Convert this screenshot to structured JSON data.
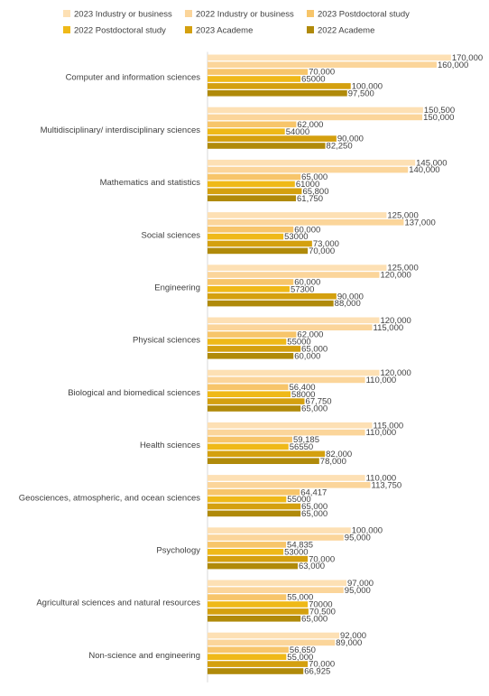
{
  "chart_data": {
    "type": "bar",
    "orientation": "horizontal",
    "title": "",
    "xlabel": "",
    "ylabel": "",
    "grid": false,
    "legend_position": "top",
    "xlim": [
      0,
      172000
    ],
    "categories": [
      "Computer and information sciences",
      "Multidisciplinary/ interdisciplinary sciences",
      "Mathematics and statistics",
      "Social sciences",
      "Engineering",
      "Physical sciences",
      "Biological and biomedical sciences",
      "Health sciences",
      "Geosciences, atmospheric, and ocean sciences",
      "Psychology",
      "Agricultural sciences and natural resources",
      "Non-science and engineering"
    ],
    "series": [
      {
        "name": "2023 Industry or business",
        "color": "#fde0b4",
        "values": [
          170000,
          150500,
          145000,
          125000,
          125000,
          120000,
          120000,
          115000,
          110000,
          100000,
          97000,
          92000
        ],
        "labels": [
          "170,000",
          "150,500",
          "145,000",
          "125,000",
          "125,000",
          "120,000",
          "120,000",
          "115,000",
          "110,000",
          "100,000",
          "97,000",
          "92,000"
        ]
      },
      {
        "name": "2022 Industry or business",
        "color": "#fbd59a",
        "values": [
          160000,
          150000,
          140000,
          137000,
          120000,
          115000,
          110000,
          110000,
          113750,
          95000,
          95000,
          89000
        ],
        "labels": [
          "160,000",
          "150,000",
          "140,000",
          "137,000",
          "120,000",
          "115,000",
          "110,000",
          "110,000",
          "113,750",
          "95,000",
          "95,000",
          "89,000"
        ]
      },
      {
        "name": "2023 Postdoctoral study",
        "color": "#f7c56a",
        "values": [
          70000,
          62000,
          65000,
          60000,
          60000,
          62000,
          56400,
          59185,
          64417,
          54835,
          55000,
          56650
        ],
        "labels": [
          "70,000",
          "62,000",
          "65,000",
          "60,000",
          "60,000",
          "62,000",
          "56,400",
          "59,185",
          "64,417",
          "54,835",
          "55,000",
          "56,650"
        ]
      },
      {
        "name": "2022 Postdoctoral study",
        "color": "#efb918",
        "values": [
          65000,
          54000,
          61000,
          53000,
          57300,
          55000,
          58000,
          56550,
          55000,
          53000,
          70000,
          55000
        ],
        "labels": [
          "65000",
          "54000",
          "61000",
          "53000",
          "57300",
          "55000",
          "58000",
          "56550",
          "55000",
          "53000",
          "70000",
          "55,000"
        ]
      },
      {
        "name": "2023 Academe",
        "color": "#d4a00f",
        "values": [
          100000,
          90000,
          65800,
          73000,
          90000,
          65000,
          67750,
          82000,
          65000,
          70000,
          70500,
          70000
        ],
        "labels": [
          "100,000",
          "90,000",
          "65,800",
          "73,000",
          "90,000",
          "65,000",
          "67,750",
          "82,000",
          "65,000",
          "70,000",
          "70,500",
          "70,000"
        ]
      },
      {
        "name": "2022 Academe",
        "color": "#b08a0a",
        "values": [
          97500,
          82250,
          61750,
          70000,
          88000,
          60000,
          65000,
          78000,
          65000,
          63000,
          65000,
          66925
        ],
        "labels": [
          "97,500",
          "82,250",
          "61,750",
          "70,000",
          "88,000",
          "60,000",
          "65,000",
          "78,000",
          "65,000",
          "63,000",
          "65,000",
          "66,925"
        ]
      }
    ]
  }
}
